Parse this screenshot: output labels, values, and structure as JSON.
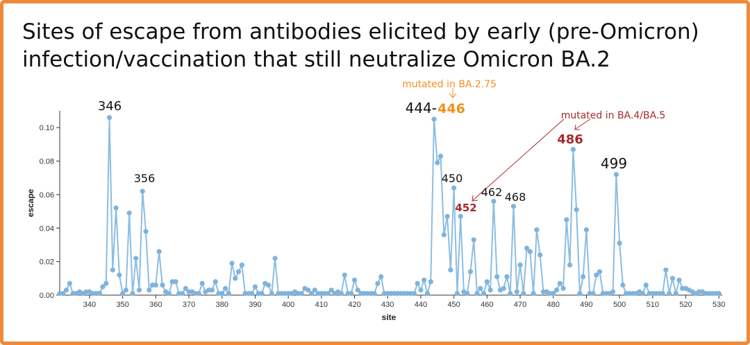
{
  "chart_data": {
    "type": "line",
    "title": [
      "Sites of escape from antibodies elicited by early (pre-Omicron)",
      "infection/vaccination that still neutralize Omicron BA.2"
    ],
    "x_label": "site",
    "y_label": "escape",
    "color": "#8bbde3",
    "marker_color": "#7fb3dc",
    "xlim": [
      331,
      531
    ],
    "ylim": [
      0,
      0.11
    ],
    "xticks": [
      340,
      350,
      360,
      370,
      380,
      390,
      400,
      410,
      420,
      430,
      440,
      450,
      460,
      470,
      480,
      490,
      500,
      510,
      520,
      530
    ],
    "yticks": [
      {
        "value": 0,
        "label": "0.00"
      },
      {
        "value": 0.02,
        "label": "0.02"
      },
      {
        "value": 0.04,
        "label": "0.04"
      },
      {
        "value": 0.06,
        "label": "0.06"
      },
      {
        "value": 0.08,
        "label": "0.08"
      },
      {
        "value": 0.1,
        "label": "0.10"
      }
    ],
    "x": [
      331,
      332,
      333,
      334,
      335,
      336,
      337,
      338,
      339,
      340,
      341,
      342,
      343,
      344,
      345,
      346,
      347,
      348,
      349,
      350,
      351,
      352,
      353,
      354,
      355,
      356,
      357,
      358,
      359,
      360,
      361,
      362,
      363,
      364,
      365,
      366,
      367,
      368,
      369,
      370,
      371,
      372,
      373,
      374,
      375,
      376,
      377,
      378,
      379,
      380,
      381,
      382,
      383,
      384,
      385,
      386,
      387,
      388,
      389,
      390,
      391,
      392,
      393,
      394,
      395,
      396,
      397,
      398,
      399,
      400,
      401,
      402,
      403,
      404,
      405,
      406,
      407,
      408,
      409,
      410,
      411,
      412,
      413,
      414,
      415,
      416,
      417,
      418,
      419,
      420,
      421,
      422,
      423,
      424,
      425,
      426,
      427,
      428,
      429,
      430,
      431,
      432,
      433,
      434,
      435,
      436,
      437,
      438,
      439,
      440,
      441,
      442,
      443,
      444,
      445,
      446,
      447,
      448,
      449,
      450,
      451,
      452,
      453,
      454,
      455,
      456,
      457,
      458,
      459,
      460,
      461,
      462,
      463,
      464,
      465,
      466,
      467,
      468,
      469,
      470,
      471,
      472,
      473,
      474,
      475,
      476,
      477,
      478,
      479,
      480,
      481,
      482,
      483,
      484,
      485,
      486,
      487,
      488,
      489,
      490,
      491,
      492,
      493,
      494,
      495,
      496,
      497,
      498,
      499,
      500,
      501,
      502,
      503,
      504,
      505,
      506,
      507,
      508,
      509,
      510,
      511,
      512,
      513,
      514,
      515,
      516,
      517,
      518,
      519,
      520,
      521,
      522,
      523,
      524,
      525,
      526,
      527,
      528,
      529,
      530
    ],
    "values": [
      0.001,
      0.001,
      0.003,
      0.007,
      0.001,
      0.001,
      0.002,
      0.001,
      0.002,
      0.002,
      0.001,
      0.001,
      0.001,
      0.005,
      0.007,
      0.106,
      0.015,
      0.052,
      0.012,
      0.001,
      0.003,
      0.049,
      0.001,
      0.022,
      0.003,
      0.062,
      0.038,
      0.003,
      0.006,
      0.006,
      0.026,
      0.006,
      0.002,
      0.001,
      0.008,
      0.008,
      0.001,
      0.001,
      0.004,
      0.002,
      0.002,
      0.001,
      0.001,
      0.007,
      0.002,
      0.003,
      0.003,
      0.008,
      0.001,
      0.001,
      0.004,
      0.001,
      0.019,
      0.01,
      0.014,
      0.018,
      0.001,
      0.001,
      0.001,
      0.005,
      0.001,
      0.001,
      0.007,
      0.006,
      0.001,
      0.022,
      0.001,
      0.001,
      0.001,
      0.001,
      0.001,
      0.002,
      0.001,
      0.001,
      0.004,
      0.003,
      0.001,
      0.003,
      0.001,
      0.001,
      0.001,
      0.001,
      0.003,
      0.001,
      0.002,
      0.001,
      0.012,
      0.001,
      0.001,
      0.009,
      0.003,
      0.001,
      0.001,
      0.001,
      0.001,
      0.001,
      0.007,
      0.011,
      0.001,
      0.001,
      0.001,
      0.001,
      0.001,
      0.001,
      0.001,
      0.001,
      0.001,
      0.001,
      0.007,
      0.003,
      0.009,
      0.001,
      0.008,
      0.105,
      0.079,
      0.083,
      0.036,
      0.047,
      0.015,
      0.064,
      0.001,
      0.047,
      0.002,
      0.001,
      0.014,
      0.033,
      0.001,
      0.004,
      0.001,
      0.008,
      0.003,
      0.056,
      0.011,
      0.003,
      0.004,
      0.011,
      0.001,
      0.053,
      0.002,
      0.018,
      0.001,
      0.028,
      0.026,
      0.001,
      0.039,
      0.024,
      0.002,
      0.002,
      0.001,
      0.001,
      0.003,
      0.007,
      0.004,
      0.045,
      0.018,
      0.087,
      0.051,
      0.001,
      0.011,
      0.039,
      0.001,
      0.001,
      0.012,
      0.014,
      0.001,
      0.001,
      0.001,
      0.002,
      0.072,
      0.031,
      0.006,
      0.001,
      0.001,
      0.001,
      0.001,
      0.002,
      0.001,
      0.006,
      0.001,
      0.001,
      0.001,
      0.001,
      0.001,
      0.015,
      0.001,
      0.01,
      0.001,
      0.009,
      0.004,
      0.004,
      0.003,
      0.002,
      0.001,
      0.002,
      0.002,
      0.001,
      0.001,
      0.001,
      0.001,
      0.001
    ],
    "annotations": [
      {
        "text": "346",
        "color": "#111111"
      },
      {
        "text": "356",
        "color": "#111111"
      },
      {
        "text": "444-",
        "color": "#111111"
      },
      {
        "text": "446",
        "color": "#f0901e"
      },
      {
        "text": "450",
        "color": "#111111"
      },
      {
        "text": "452",
        "color": "#a52a2a"
      },
      {
        "text": "462",
        "color": "#111111"
      },
      {
        "text": "468",
        "color": "#111111"
      },
      {
        "text": "486",
        "color": "#a52a2a"
      },
      {
        "text": "499",
        "color": "#111111"
      },
      {
        "text": "mutated in BA.2.75",
        "color": "#f0901e"
      },
      {
        "text": "mutated in BA.4/BA.5",
        "color": "#a52a2a"
      }
    ]
  }
}
